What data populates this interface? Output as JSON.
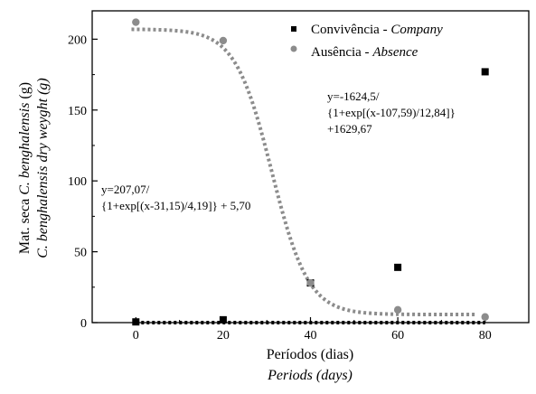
{
  "chart_data": {
    "type": "scatter",
    "xlabel": "Períodos (dias)",
    "xlabel_en": "Periods (days)",
    "ylabel_pt_prefix": "Mat. seca ",
    "ylabel_pt_species": "C. benghalensis",
    "ylabel_pt_unit": " (g)",
    "ylabel_en_species": "C. benghalensis",
    "ylabel_en_rest": " dry weyght (g)",
    "xlim": [
      -10,
      90
    ],
    "ylim": [
      0,
      220
    ],
    "x_ticks": [
      0,
      20,
      40,
      60,
      80
    ],
    "y_ticks": [
      0,
      50,
      100,
      150,
      200
    ],
    "grid": false,
    "legend_position": "top-right",
    "series": [
      {
        "name_pt": "Convivência - ",
        "name_en": "Company",
        "marker": "square",
        "color": "#000000",
        "points": [
          {
            "x": 0,
            "y": 0.5
          },
          {
            "x": 20,
            "y": 2
          },
          {
            "x": 40,
            "y": 28
          },
          {
            "x": 60,
            "y": 39
          },
          {
            "x": 80,
            "y": 177
          }
        ],
        "fit": {
          "type": "sigmoid",
          "A1": -1624.5,
          "A2": 1629.67,
          "x0": 107.59,
          "dx": 12.84,
          "x_range": [
            0,
            80
          ]
        },
        "equation_lines": [
          "y=-1624,5/",
          "{1+exp[(x-107,59)/12,84]}",
          "+1629,67"
        ]
      },
      {
        "name_pt": "Ausência - ",
        "name_en": "Absence",
        "marker": "circle",
        "color": "#8c8c8c",
        "points": [
          {
            "x": 0,
            "y": 212
          },
          {
            "x": 20,
            "y": 199
          },
          {
            "x": 40,
            "y": 28
          },
          {
            "x": 60,
            "y": 9
          },
          {
            "x": 80,
            "y": 4
          }
        ],
        "fit": {
          "type": "sigmoid",
          "A1": 207.07,
          "A2": 5.7,
          "x0": 31.15,
          "dx": 4.19,
          "x_range": [
            -1,
            78
          ]
        },
        "equation_lines": [
          "y=207,07/",
          "{1+exp[(x-31,15)/4,19]} + 5,70"
        ]
      }
    ]
  }
}
